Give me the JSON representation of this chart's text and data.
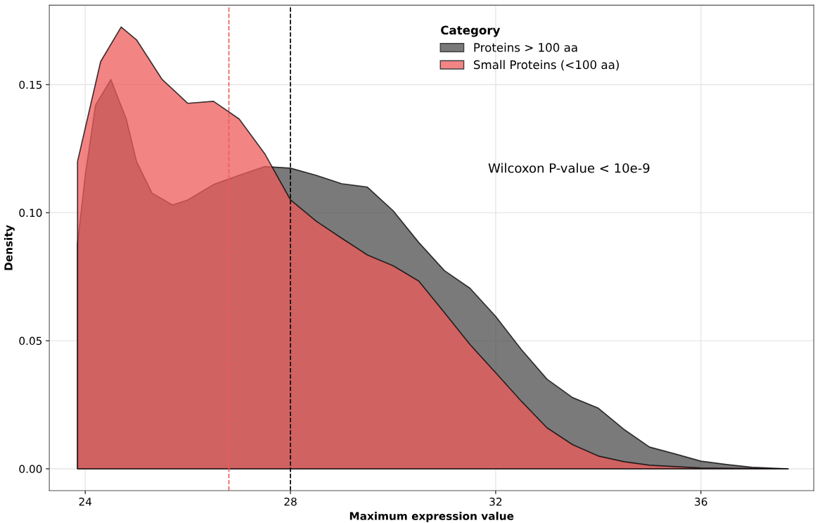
{
  "chart_data": {
    "type": "area",
    "xlabel": "Maximum expression value",
    "ylabel": "Density",
    "legend_title": "Category",
    "legend": "top right",
    "grid": true,
    "xlim": [
      23.3,
      38.2
    ],
    "ylim": [
      -0.0085,
      0.181
    ],
    "xticks": [
      24,
      28,
      32,
      36
    ],
    "yticks": [
      {
        "value": 0,
        "label": "0.00"
      },
      {
        "value": 0.05,
        "label": "0.05"
      },
      {
        "value": 0.1,
        "label": "0.10"
      },
      {
        "value": 0.15,
        "label": "0.15"
      }
    ],
    "series": [
      {
        "name": "Proteins > 100 aa",
        "color": "#4d4d4d",
        "x": [
          23.85,
          24.0,
          24.2,
          24.5,
          24.8,
          25.0,
          25.3,
          25.7,
          26.0,
          26.5,
          27.0,
          27.5,
          28.0,
          28.5,
          29.0,
          29.5,
          30.0,
          30.5,
          31.0,
          31.5,
          32.0,
          32.5,
          33.0,
          33.5,
          34.0,
          34.5,
          35.0,
          35.5,
          36.0,
          36.5,
          37.0,
          37.7
        ],
        "values": [
          0.088,
          0.1146,
          0.142,
          0.152,
          0.1366,
          0.12,
          0.1077,
          0.103,
          0.105,
          0.111,
          0.1146,
          0.118,
          0.1174,
          0.1146,
          0.1113,
          0.11,
          0.1008,
          0.0884,
          0.0774,
          0.0705,
          0.0595,
          0.0466,
          0.035,
          0.0278,
          0.0237,
          0.0154,
          0.0085,
          0.0058,
          0.003,
          0.0017,
          0.0006,
          0
        ]
      },
      {
        "name": "Small Proteins (<100 aa)",
        "color": "#ef5b5b",
        "x": [
          23.85,
          24.3,
          24.7,
          25.0,
          25.5,
          26.0,
          26.5,
          27.0,
          27.5,
          28.0,
          28.5,
          29.0,
          29.5,
          30.0,
          30.5,
          31.0,
          31.5,
          32.0,
          32.5,
          33.0,
          33.5,
          34.0,
          34.5,
          35.0,
          36.0,
          37.7
        ],
        "values": [
          0.12,
          0.159,
          0.1725,
          0.1675,
          0.152,
          0.1427,
          0.1435,
          0.1366,
          0.123,
          0.105,
          0.0967,
          0.09,
          0.0835,
          0.0793,
          0.0733,
          0.061,
          0.0485,
          0.0375,
          0.0264,
          0.016,
          0.0094,
          0.005,
          0.0028,
          0.0014,
          0.0003,
          0
        ]
      }
    ],
    "ref_lines": [
      {
        "axis": "x",
        "value": 26.8,
        "color": "#ef5b5b",
        "line_style": "dashed"
      },
      {
        "axis": "x",
        "value": 28.0,
        "color": "#000000",
        "line_style": "dashed"
      }
    ],
    "annotations": [
      "Wilcoxon P-value < 10e-9"
    ]
  }
}
